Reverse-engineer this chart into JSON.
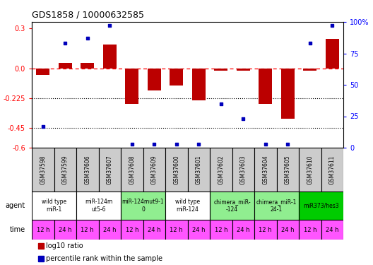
{
  "title": "GDS1858 / 10000632585",
  "samples": [
    "GSM37598",
    "GSM37599",
    "GSM37606",
    "GSM37607",
    "GSM37608",
    "GSM37609",
    "GSM37600",
    "GSM37601",
    "GSM37602",
    "GSM37603",
    "GSM37604",
    "GSM37605",
    "GSM37610",
    "GSM37611"
  ],
  "log10_ratio": [
    -0.05,
    0.04,
    0.04,
    0.18,
    -0.27,
    -0.17,
    -0.13,
    -0.24,
    -0.02,
    -0.02,
    -0.27,
    -0.38,
    -0.02,
    0.22
  ],
  "percentile_rank": [
    17,
    83,
    87,
    97,
    3,
    3,
    3,
    3,
    35,
    23,
    3,
    3,
    83,
    97
  ],
  "agent_groups": [
    {
      "label": "wild type\nmiR-1",
      "cols": [
        0,
        1
      ],
      "color": "#ffffff"
    },
    {
      "label": "miR-124m\nut5-6",
      "cols": [
        2,
        3
      ],
      "color": "#ffffff"
    },
    {
      "label": "miR-124mut9-1\n0",
      "cols": [
        4,
        5
      ],
      "color": "#90ee90"
    },
    {
      "label": "wild type\nmiR-124",
      "cols": [
        6,
        7
      ],
      "color": "#ffffff"
    },
    {
      "label": "chimera_miR-\n-124",
      "cols": [
        8,
        9
      ],
      "color": "#90ee90"
    },
    {
      "label": "chimera_miR-1\n24-1",
      "cols": [
        10,
        11
      ],
      "color": "#90ee90"
    },
    {
      "label": "miR373/hes3",
      "cols": [
        12,
        13
      ],
      "color": "#00cc00"
    }
  ],
  "time_labels": [
    "12 h",
    "24 h",
    "12 h",
    "24 h",
    "12 h",
    "24 h",
    "12 h",
    "24 h",
    "12 h",
    "24 h",
    "12 h",
    "24 h",
    "12 h",
    "24 h"
  ],
  "time_color": "#ff55ff",
  "sample_color": "#cccccc",
  "bar_color": "#bb0000",
  "dot_color": "#0000bb",
  "ylim_left": [
    -0.6,
    0.35
  ],
  "ylim_right": [
    0,
    100
  ],
  "yticks_left": [
    0.3,
    0.0,
    -0.225,
    -0.45,
    -0.6
  ],
  "yticks_right": [
    100,
    75,
    50,
    25,
    0
  ],
  "hlines_dotted": [
    -0.225,
    -0.45
  ],
  "legend_items": [
    {
      "label": "log10 ratio",
      "color": "#bb0000"
    },
    {
      "label": "percentile rank within the sample",
      "color": "#0000bb"
    }
  ]
}
